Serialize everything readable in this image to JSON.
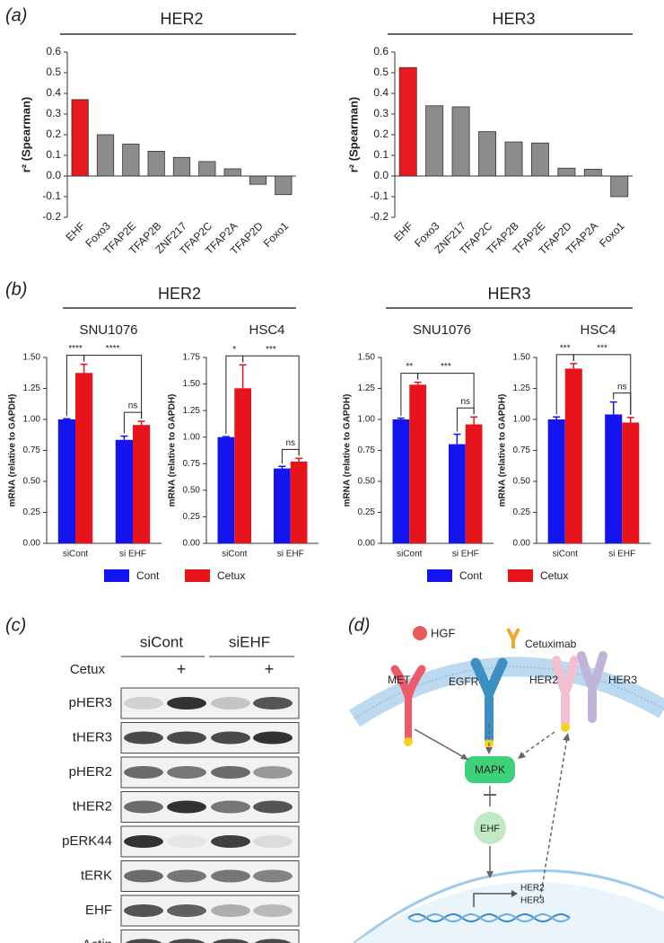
{
  "panel_labels": [
    "(a)",
    "(b)",
    "(c)",
    "(d)"
  ],
  "panel_b_groups": [
    "HER2",
    "HER3"
  ],
  "chart_data": [
    {
      "type": "bar",
      "title": "HER2",
      "y_label": "r² (Spearman)",
      "categories": [
        "EHF",
        "Foxo3",
        "TFAP2E",
        "TFAP2B",
        "ZNF217",
        "TFAP2C",
        "TFAP2A",
        "TFAP2D",
        "Foxo1"
      ],
      "values": [
        0.37,
        0.2,
        0.155,
        0.12,
        0.09,
        0.07,
        0.035,
        -0.04,
        -0.09
      ],
      "colors": [
        "#e8191f",
        "#8c8c8c",
        "#8c8c8c",
        "#8c8c8c",
        "#8c8c8c",
        "#8c8c8c",
        "#8c8c8c",
        "#8c8c8c",
        "#8c8c8c"
      ],
      "ylim": [
        -0.2,
        0.6
      ],
      "yticks": [
        -0.2,
        -0.1,
        {
          "value": 0,
          "label": "0.0"
        },
        0.1,
        0.2,
        0.3,
        0.4,
        0.5,
        0.6
      ]
    },
    {
      "type": "bar",
      "title": "HER3",
      "y_label": "r² (Spearman)",
      "categories": [
        "EHF",
        "Foxo3",
        "ZNF217",
        "TFAP2C",
        "TFAP2B",
        "TFAP2E",
        "TFAP2D",
        "TFAP2A",
        "Foxo1"
      ],
      "values": [
        0.525,
        0.34,
        0.335,
        0.215,
        0.165,
        0.16,
        0.038,
        0.033,
        -0.1
      ],
      "colors": [
        "#e8191f",
        "#8c8c8c",
        "#8c8c8c",
        "#8c8c8c",
        "#8c8c8c",
        "#8c8c8c",
        "#8c8c8c",
        "#8c8c8c",
        "#8c8c8c"
      ],
      "ylim": [
        -0.2,
        0.6
      ],
      "yticks": [
        -0.2,
        -0.1,
        {
          "value": 0,
          "label": "0.0"
        },
        0.1,
        0.2,
        0.3,
        0.4,
        0.5,
        0.6
      ]
    },
    {
      "type": "grouped_bar",
      "title": "SNU1076",
      "y_label": "mRNA (relative to GAPDH)",
      "categories": [
        "siCont",
        "si EHF"
      ],
      "series": [
        {
          "name": "Cont",
          "color": "#1414f0",
          "values": [
            1.0,
            0.835
          ],
          "errors": [
            0.005,
            0.03
          ]
        },
        {
          "name": "Cetux",
          "color": "#e8141b",
          "values": [
            1.375,
            0.955
          ],
          "errors": [
            0.07,
            0.03
          ]
        }
      ],
      "annotations": [
        "****",
        "****",
        "ns"
      ],
      "ylim": [
        0,
        1.5
      ],
      "yticks": [
        {
          "value": 0,
          "label": "0.00"
        },
        0.25,
        {
          "value": 0.5,
          "label": "0.50"
        },
        0.75,
        {
          "value": 1,
          "label": "1.00"
        },
        1.25,
        {
          "value": 1.5,
          "label": "1.50"
        }
      ]
    },
    {
      "type": "grouped_bar",
      "title": "HSC4",
      "y_label": "mRNA (relative to GAPDH)",
      "categories": [
        "siCont",
        "si EHF"
      ],
      "series": [
        {
          "color": "#1414f0",
          "values": [
            1.0,
            0.705
          ],
          "errors": [
            0.005,
            0.02
          ]
        },
        {
          "color": "#e8141b",
          "values": [
            1.46,
            0.77
          ],
          "errors": [
            0.22,
            0.03
          ]
        }
      ],
      "annotations": [
        "*",
        "***",
        "ns"
      ],
      "ylim": [
        0,
        1.75
      ],
      "yticks": [
        {
          "value": 0,
          "label": "0.00"
        },
        0.25,
        {
          "value": 0.5,
          "label": "0.50"
        },
        0.75,
        {
          "value": 1,
          "label": "1.00"
        },
        1.25,
        {
          "value": 1.5,
          "label": "1.50"
        },
        1.75
      ]
    },
    {
      "type": "grouped_bar",
      "title": "SNU1076",
      "y_label": "mRNA (relative to GAPDH)",
      "categories": [
        "siCont",
        "si EHF"
      ],
      "series": [
        {
          "name": "Cont",
          "color": "#1414f0",
          "values": [
            1.0,
            0.8
          ],
          "errors": [
            0.01,
            0.08
          ]
        },
        {
          "name": "Cetux",
          "color": "#e8141b",
          "values": [
            1.28,
            0.96
          ],
          "errors": [
            0.02,
            0.06
          ]
        }
      ],
      "annotations": [
        "**",
        "***",
        "ns"
      ],
      "ylim": [
        0,
        1.5
      ],
      "yticks": [
        {
          "value": 0,
          "label": "0.00"
        },
        0.25,
        {
          "value": 0.5,
          "label": "0.50"
        },
        0.75,
        {
          "value": 1,
          "label": "1.00"
        },
        1.25,
        {
          "value": 1.5,
          "label": "1.50"
        }
      ]
    },
    {
      "type": "grouped_bar",
      "title": "HSC4",
      "y_label": "mRNA (relative to GAPDH)",
      "categories": [
        "siCont",
        "si EHF"
      ],
      "series": [
        {
          "color": "#1414f0",
          "values": [
            1.0,
            1.04
          ],
          "errors": [
            0.02,
            0.1
          ]
        },
        {
          "color": "#e8141b",
          "values": [
            1.41,
            0.975
          ],
          "errors": [
            0.04,
            0.04
          ]
        }
      ],
      "annotations": [
        "***",
        "***",
        "ns"
      ],
      "ylim": [
        0,
        1.5
      ],
      "yticks": [
        {
          "value": 0,
          "label": "0.00"
        },
        0.25,
        {
          "value": 0.5,
          "label": "0.50"
        },
        0.75,
        {
          "value": 1,
          "label": "1.00"
        },
        1.25,
        {
          "value": 1.5,
          "label": "1.50"
        }
      ]
    }
  ],
  "blot": {
    "columns": [
      "siCont",
      "siEHF"
    ],
    "treatment": "Cetux",
    "treatment_marks": [
      "+",
      "+"
    ],
    "rows": [
      "pHER3",
      "tHER3",
      "pHER2",
      "tHER2",
      "pERK44",
      "tERK",
      "EHF",
      "Actin"
    ]
  },
  "pathway": {
    "ligands": [
      "HGF",
      "Cetuximab"
    ],
    "receptors": [
      "MET",
      "EGFR",
      "HER2",
      "HER3"
    ],
    "nodes": [
      "MAPK",
      "EHF"
    ],
    "targets": [
      "HER2",
      "HER3"
    ]
  }
}
